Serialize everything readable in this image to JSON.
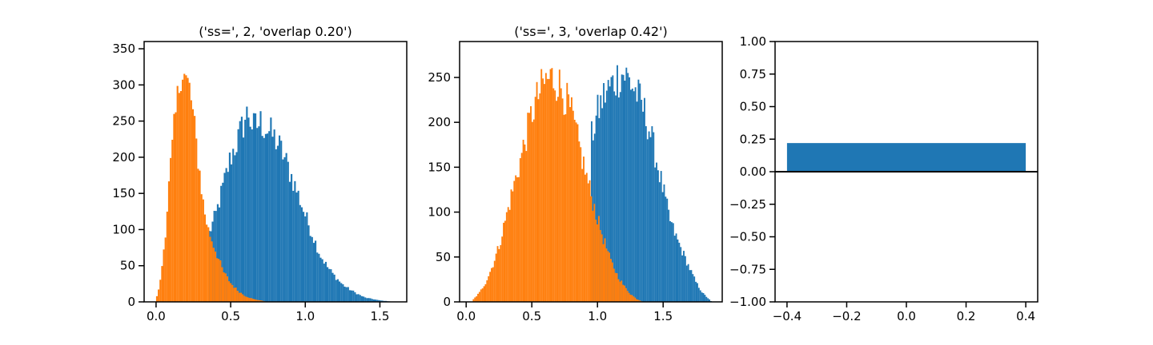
{
  "colors": {
    "blue": "#1f77b4",
    "orange": "#ff7f0e",
    "axis": "#000000"
  },
  "chart_data": [
    {
      "type": "bar",
      "chart_kind": "histogram",
      "title": "('ss=', 2, 'overlap 0.20')",
      "xlim": [
        -0.08,
        1.68
      ],
      "ylim": [
        0,
        360
      ],
      "xticks": [
        0.0,
        0.5,
        1.0,
        1.5
      ],
      "xtick_labels": [
        "0.0",
        "0.5",
        "1.0",
        "1.5"
      ],
      "yticks": [
        0,
        50,
        100,
        150,
        200,
        250,
        300,
        350
      ],
      "ytick_labels": [
        "0",
        "50",
        "100",
        "150",
        "200",
        "250",
        "300",
        "350"
      ],
      "bin_width": 0.0115,
      "series": [
        {
          "color": "#1f77b4",
          "peaks": [
            {
              "x": 0.35,
              "y": 92
            },
            {
              "x": 0.4,
              "y": 120
            },
            {
              "x": 0.45,
              "y": 160
            },
            {
              "x": 0.5,
              "y": 200
            },
            {
              "x": 0.55,
              "y": 225
            },
            {
              "x": 0.6,
              "y": 255
            },
            {
              "x": 0.62,
              "y": 262
            },
            {
              "x": 0.65,
              "y": 240
            },
            {
              "x": 0.7,
              "y": 248
            },
            {
              "x": 0.75,
              "y": 238
            },
            {
              "x": 0.8,
              "y": 225
            },
            {
              "x": 0.85,
              "y": 205
            },
            {
              "x": 0.9,
              "y": 178
            },
            {
              "x": 0.95,
              "y": 150
            },
            {
              "x": 1.0,
              "y": 120
            },
            {
              "x": 1.05,
              "y": 92
            },
            {
              "x": 1.1,
              "y": 65
            },
            {
              "x": 1.15,
              "y": 48
            },
            {
              "x": 1.2,
              "y": 35
            },
            {
              "x": 1.25,
              "y": 24
            },
            {
              "x": 1.3,
              "y": 17
            },
            {
              "x": 1.35,
              "y": 11
            },
            {
              "x": 1.4,
              "y": 6
            },
            {
              "x": 1.45,
              "y": 4
            },
            {
              "x": 1.5,
              "y": 2
            },
            {
              "x": 1.55,
              "y": 1
            },
            {
              "x": 1.6,
              "y": 0
            }
          ]
        },
        {
          "color": "#ff7f0e",
          "peaks": [
            {
              "x": 0.0,
              "y": 2
            },
            {
              "x": 0.03,
              "y": 30
            },
            {
              "x": 0.06,
              "y": 90
            },
            {
              "x": 0.09,
              "y": 170
            },
            {
              "x": 0.12,
              "y": 235
            },
            {
              "x": 0.15,
              "y": 290
            },
            {
              "x": 0.17,
              "y": 330
            },
            {
              "x": 0.2,
              "y": 305
            },
            {
              "x": 0.23,
              "y": 290
            },
            {
              "x": 0.26,
              "y": 235
            },
            {
              "x": 0.29,
              "y": 185
            },
            {
              "x": 0.32,
              "y": 130
            },
            {
              "x": 0.35,
              "y": 100
            },
            {
              "x": 0.4,
              "y": 70
            },
            {
              "x": 0.45,
              "y": 42
            },
            {
              "x": 0.5,
              "y": 26
            },
            {
              "x": 0.55,
              "y": 15
            },
            {
              "x": 0.6,
              "y": 8
            },
            {
              "x": 0.65,
              "y": 4
            },
            {
              "x": 0.7,
              "y": 2
            },
            {
              "x": 0.75,
              "y": 0
            }
          ]
        }
      ]
    },
    {
      "type": "bar",
      "chart_kind": "histogram",
      "title": "('ss=', 3, 'overlap 0.42')",
      "xlim": [
        -0.05,
        1.95
      ],
      "ylim": [
        0,
        290
      ],
      "xticks": [
        0.0,
        0.5,
        1.0,
        1.5
      ],
      "xtick_labels": [
        "0.0",
        "0.5",
        "1.0",
        "1.5"
      ],
      "yticks": [
        0,
        50,
        100,
        150,
        200,
        250
      ],
      "ytick_labels": [
        "0",
        "50",
        "100",
        "150",
        "200",
        "250"
      ],
      "bin_width": 0.0115,
      "series": [
        {
          "color": "#1f77b4",
          "peaks": [
            {
              "x": 0.95,
              "y": 180
            },
            {
              "x": 1.0,
              "y": 210
            },
            {
              "x": 1.05,
              "y": 230
            },
            {
              "x": 1.1,
              "y": 240
            },
            {
              "x": 1.15,
              "y": 250
            },
            {
              "x": 1.2,
              "y": 255
            },
            {
              "x": 1.25,
              "y": 245
            },
            {
              "x": 1.3,
              "y": 232
            },
            {
              "x": 1.35,
              "y": 215
            },
            {
              "x": 1.4,
              "y": 190
            },
            {
              "x": 1.45,
              "y": 158
            },
            {
              "x": 1.5,
              "y": 125
            },
            {
              "x": 1.55,
              "y": 92
            },
            {
              "x": 1.6,
              "y": 72
            },
            {
              "x": 1.65,
              "y": 55
            },
            {
              "x": 1.7,
              "y": 38
            },
            {
              "x": 1.75,
              "y": 22
            },
            {
              "x": 1.8,
              "y": 10
            },
            {
              "x": 1.85,
              "y": 3
            },
            {
              "x": 1.87,
              "y": 0
            }
          ]
        },
        {
          "color": "#ff7f0e",
          "peaks": [
            {
              "x": 0.05,
              "y": 2
            },
            {
              "x": 0.1,
              "y": 10
            },
            {
              "x": 0.15,
              "y": 22
            },
            {
              "x": 0.2,
              "y": 40
            },
            {
              "x": 0.25,
              "y": 62
            },
            {
              "x": 0.3,
              "y": 92
            },
            {
              "x": 0.35,
              "y": 122
            },
            {
              "x": 0.4,
              "y": 150
            },
            {
              "x": 0.45,
              "y": 180
            },
            {
              "x": 0.5,
              "y": 210
            },
            {
              "x": 0.55,
              "y": 230
            },
            {
              "x": 0.6,
              "y": 245
            },
            {
              "x": 0.65,
              "y": 250
            },
            {
              "x": 0.7,
              "y": 245
            },
            {
              "x": 0.75,
              "y": 230
            },
            {
              "x": 0.8,
              "y": 210
            },
            {
              "x": 0.85,
              "y": 180
            },
            {
              "x": 0.9,
              "y": 150
            },
            {
              "x": 0.95,
              "y": 120
            },
            {
              "x": 1.0,
              "y": 92
            },
            {
              "x": 1.05,
              "y": 68
            },
            {
              "x": 1.1,
              "y": 46
            },
            {
              "x": 1.15,
              "y": 30
            },
            {
              "x": 1.2,
              "y": 18
            },
            {
              "x": 1.25,
              "y": 9
            },
            {
              "x": 1.3,
              "y": 3
            },
            {
              "x": 1.35,
              "y": 0
            }
          ]
        }
      ]
    },
    {
      "type": "bar",
      "title": "",
      "xlim": [
        -0.44,
        0.44
      ],
      "ylim": [
        -1.0,
        1.0
      ],
      "xticks": [
        -0.4,
        -0.2,
        0.0,
        0.2,
        0.4
      ],
      "xtick_labels": [
        "−0.4",
        "−0.2",
        "0.0",
        "0.2",
        "0.4"
      ],
      "yticks": [
        -1.0,
        -0.75,
        -0.5,
        -0.25,
        0.0,
        0.25,
        0.5,
        0.75,
        1.0
      ],
      "ytick_labels": [
        "−1.00",
        "−0.75",
        "−0.50",
        "−0.25",
        "0.00",
        "0.25",
        "0.50",
        "0.75",
        "1.00"
      ],
      "bars": [
        {
          "x": 0.0,
          "width": 0.8,
          "value": 0.22,
          "color": "#1f77b4"
        }
      ],
      "hline": 0.0
    }
  ]
}
